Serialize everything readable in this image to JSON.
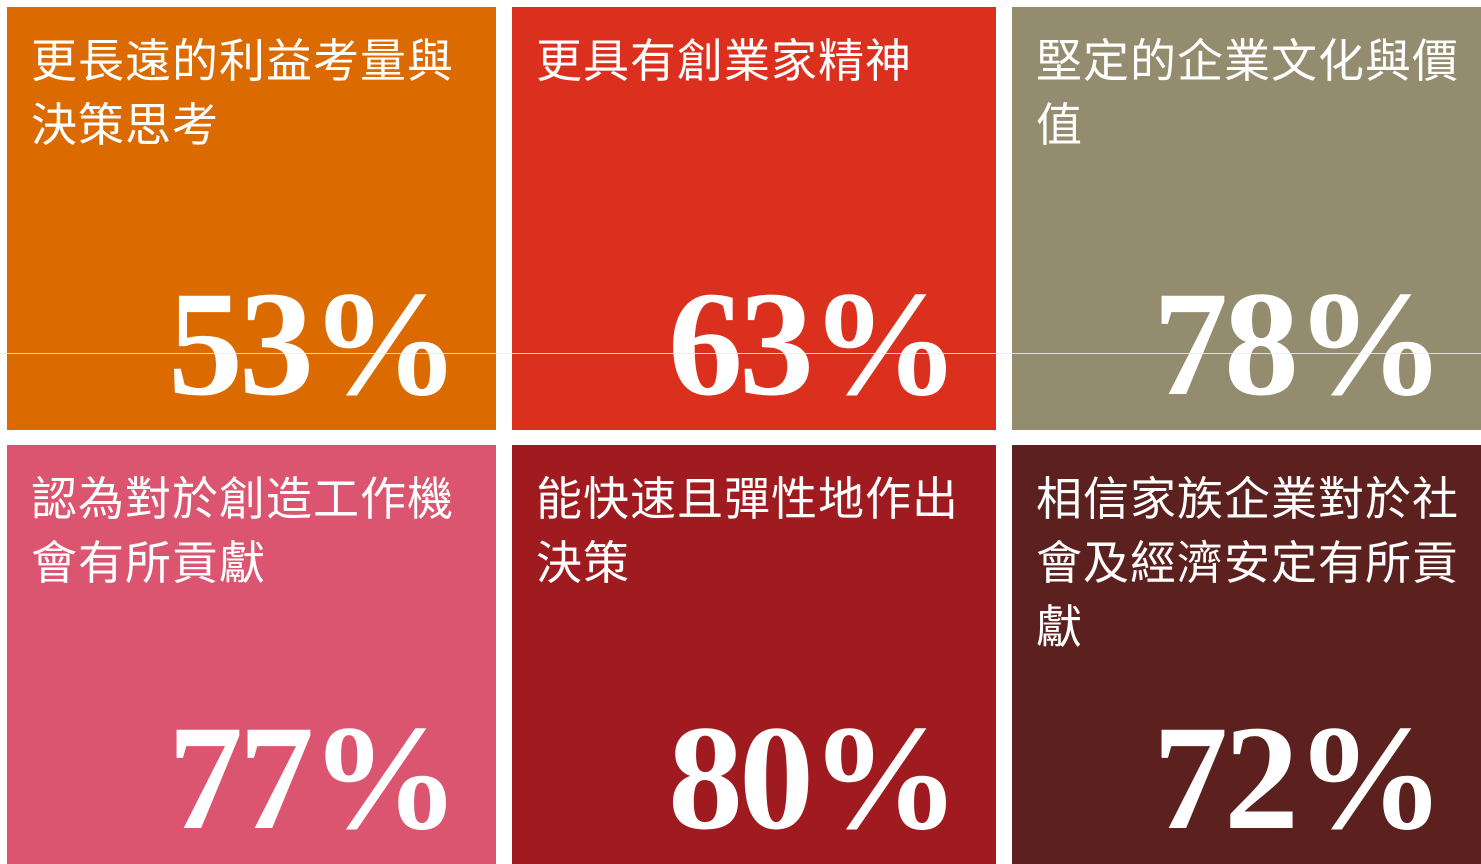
{
  "tiles": [
    {
      "label": "更長遠的利益考量與決策思考",
      "value": "53%",
      "color": "#db6b00"
    },
    {
      "label": "更具有創業家精神",
      "value": "63%",
      "color": "#dc301f"
    },
    {
      "label": "堅定的企業文化與價值",
      "value": "78%",
      "color": "#948c6e"
    },
    {
      "label": "認為對於創造工作機會有所貢獻",
      "value": "77%",
      "color": "#db5470"
    },
    {
      "label": "能快速且彈性地作出決策",
      "value": "80%",
      "color": "#a01b1f"
    },
    {
      "label": "相信家族企業對於社會及經濟安定有所貢獻",
      "value": "72%",
      "color": "#5c211f"
    }
  ]
}
